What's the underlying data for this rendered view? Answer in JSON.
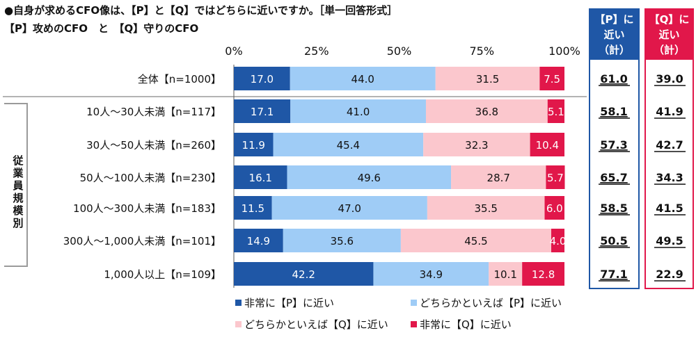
{
  "title_line1": "●自身が求めるCFO像は、【P】と【Q】ではどちらに近いですか。［単一回答形式］",
  "title_line2": "【P】攻めのCFO　と　【Q】守りのCFO",
  "segment_label": "従業員規模別",
  "p_header": [
    "【P】に",
    "近い",
    "（計）"
  ],
  "q_header": [
    "【Q】に",
    "近い",
    "（計）"
  ],
  "chart_data": {
    "type": "bar",
    "orientation": "horizontal",
    "stacked": true,
    "x_ticks": [
      "0%",
      "25%",
      "50%",
      "75%",
      "100%"
    ],
    "xlim": [
      0,
      100
    ],
    "categories": [
      "全体【n=1000】",
      "10人～30人未満【n=117】",
      "30人～50人未満【n=260】",
      "50人～100人未満【n=230】",
      "100人～300人未満【n=183】",
      "300人～1,000人未満【n=101】",
      "1,000人以上【n=109】"
    ],
    "series": [
      {
        "name": "非常に【P】に近い",
        "color": "#1f57a6",
        "label_color": "#ffffff",
        "values": [
          17.0,
          17.1,
          11.9,
          16.1,
          11.5,
          14.9,
          42.2
        ]
      },
      {
        "name": "どちらかといえば【P】に近い",
        "color": "#9fccf6",
        "label_color": "#111111",
        "values": [
          44.0,
          41.0,
          45.4,
          49.6,
          47.0,
          35.6,
          34.9
        ]
      },
      {
        "name": "どちらかといえば【Q】に近い",
        "color": "#fbc7cd",
        "label_color": "#111111",
        "values": [
          31.5,
          36.8,
          32.3,
          28.7,
          35.5,
          45.5,
          10.1
        ]
      },
      {
        "name": "非常に【Q】に近い",
        "color": "#e1174a",
        "label_color": "#ffffff",
        "values": [
          7.5,
          5.1,
          10.4,
          5.7,
          6.0,
          4.0,
          12.8
        ]
      }
    ],
    "p_total": [
      "61.0",
      "58.1",
      "57.3",
      "65.7",
      "58.5",
      "50.5",
      "77.1"
    ],
    "q_total": [
      "39.0",
      "41.9",
      "42.7",
      "34.3",
      "41.5",
      "49.5",
      "22.9"
    ]
  }
}
